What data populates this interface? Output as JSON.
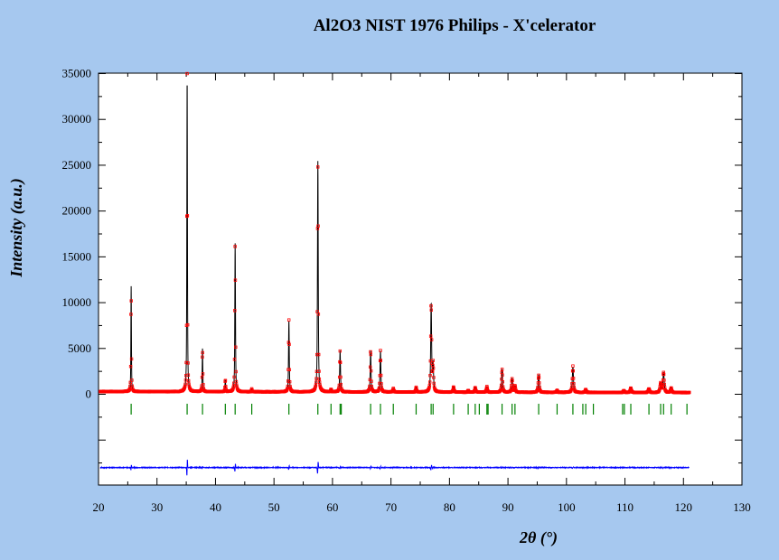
{
  "chart_data": {
    "type": "line",
    "title": "Al2O3 NIST 1976 Philips - X'celerator",
    "xlabel": "2θ (°)",
    "ylabel": "Intensity (a.u.)",
    "xlim": [
      20,
      130
    ],
    "ylim": [
      -10000,
      35000
    ],
    "x_ticks": [
      20,
      30,
      40,
      50,
      60,
      70,
      80,
      90,
      100,
      110,
      120,
      130
    ],
    "y_ticks": [
      0,
      5000,
      10000,
      15000,
      20000,
      25000,
      30000,
      35000
    ],
    "grid": false,
    "background": "#ffffff",
    "page_background": "#a6c8ef",
    "observed_color": "#ff0000",
    "calculated_color": "#000000",
    "bragg_color": "#008000",
    "difference_color": "#0000ff",
    "peaks": [
      {
        "x": 25.58,
        "y": 11500
      },
      {
        "x": 35.15,
        "y": 34300
      },
      {
        "x": 37.78,
        "y": 4700
      },
      {
        "x": 41.68,
        "y": 1300
      },
      {
        "x": 43.36,
        "y": 16200
      },
      {
        "x": 46.2,
        "y": 300
      },
      {
        "x": 52.55,
        "y": 7800
      },
      {
        "x": 57.5,
        "y": 25200
      },
      {
        "x": 59.75,
        "y": 300
      },
      {
        "x": 61.3,
        "y": 4500
      },
      {
        "x": 66.52,
        "y": 4500
      },
      {
        "x": 68.2,
        "y": 4500
      },
      {
        "x": 70.4,
        "y": 400
      },
      {
        "x": 74.3,
        "y": 500
      },
      {
        "x": 76.87,
        "y": 9600
      },
      {
        "x": 77.2,
        "y": 3000
      },
      {
        "x": 80.7,
        "y": 600
      },
      {
        "x": 83.2,
        "y": 200
      },
      {
        "x": 84.4,
        "y": 500
      },
      {
        "x": 86.4,
        "y": 600
      },
      {
        "x": 88.99,
        "y": 2500
      },
      {
        "x": 90.7,
        "y": 1500
      },
      {
        "x": 91.2,
        "y": 700
      },
      {
        "x": 95.25,
        "y": 1900
      },
      {
        "x": 98.4,
        "y": 200
      },
      {
        "x": 101.1,
        "y": 2800
      },
      {
        "x": 103.3,
        "y": 300
      },
      {
        "x": 109.8,
        "y": 200
      },
      {
        "x": 111.0,
        "y": 500
      },
      {
        "x": 114.1,
        "y": 400
      },
      {
        "x": 116.1,
        "y": 1000
      },
      {
        "x": 116.6,
        "y": 2200
      },
      {
        "x": 117.9,
        "y": 500
      }
    ],
    "bragg_positions": [
      25.58,
      35.15,
      37.78,
      41.68,
      43.36,
      46.2,
      52.55,
      57.5,
      59.75,
      61.3,
      61.5,
      66.52,
      68.2,
      70.4,
      74.3,
      76.87,
      77.2,
      80.7,
      83.2,
      84.4,
      85.1,
      86.4,
      86.6,
      88.99,
      90.7,
      91.2,
      95.25,
      98.4,
      101.1,
      102.8,
      103.3,
      104.6,
      109.6,
      109.9,
      111.0,
      114.1,
      116.1,
      116.6,
      117.9,
      120.6
    ],
    "difference_offset": -8000
  }
}
